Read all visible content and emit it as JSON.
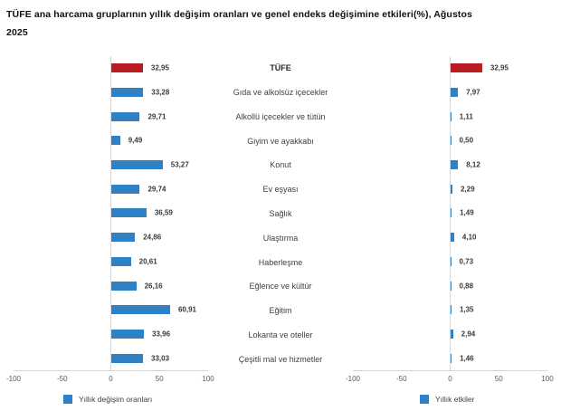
{
  "title": {
    "line1": "TÜFE ana harcama gruplarının yıllık değişim oranları ve genel endeks değişimine etkileri(%), Ağustos",
    "line2": "2025"
  },
  "chart_data": {
    "type": "bar",
    "orientation": "horizontal",
    "title": "TÜFE ana harcama gruplarının yıllık değişim oranları ve genel endeks değişimine etkileri(%), Ağustos 2025",
    "categories": [
      "TÜFE",
      "Gıda ve alkolsüz içecekler",
      "Alkollü içecekler ve tütün",
      "Giyim ve ayakkabı",
      "Konut",
      "Ev eşyası",
      "Sağlık",
      "Ulaştırma",
      "Haberleşme",
      "Eğlence ve kültür",
      "Eğitim",
      "Lokanta ve oteller",
      "Çeşitli mal ve hizmetler"
    ],
    "series": [
      {
        "name": "Yıllık değişim oranları",
        "values": [
          32.95,
          33.28,
          29.71,
          9.49,
          53.27,
          29.74,
          36.59,
          24.86,
          20.61,
          26.16,
          60.91,
          33.96,
          33.03
        ]
      },
      {
        "name": "Yıllık etkiler",
        "values": [
          32.95,
          7.97,
          1.11,
          0.5,
          8.12,
          2.29,
          1.49,
          4.1,
          0.73,
          0.88,
          1.35,
          2.94,
          1.46
        ]
      }
    ],
    "xlim": [
      -100,
      100
    ],
    "x_ticks": [
      "-100",
      "-50",
      "0",
      "50",
      "100"
    ],
    "highlight_category": "TÜFE",
    "colors": {
      "bar": "#2e81c4",
      "highlight": "#b71d22"
    },
    "grid": "zero-line-only",
    "legend_position": "bottom",
    "value_label_format": "decimal-comma"
  }
}
